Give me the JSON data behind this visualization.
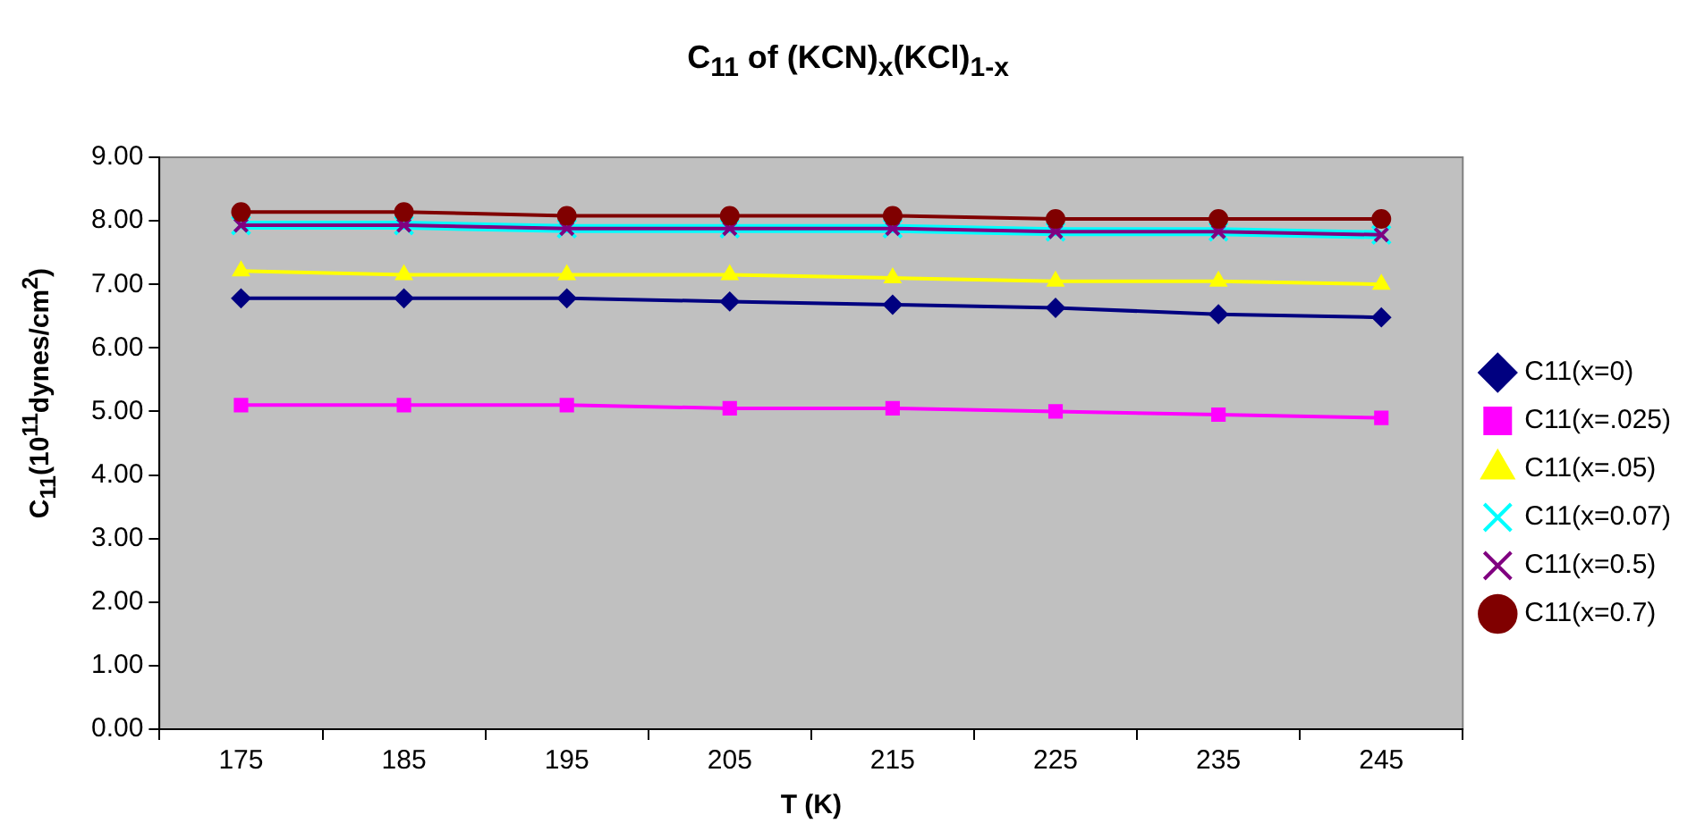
{
  "chart_data": {
    "type": "line",
    "title": "C$_{11}$ of (KCN)$_{x}$(KCl)$_{1-x}$",
    "xlabel": "T (K)",
    "ylabel": "C$_{11}$(10$^{11}$dynes/cm$^{2}$)",
    "categories": [
      "175",
      "185",
      "195",
      "205",
      "215",
      "225",
      "235",
      "245"
    ],
    "series": [
      {
        "name": "C11(x=0)",
        "color": "#000080",
        "marker": "diamond",
        "values": [
          6.78,
          6.78,
          6.78,
          6.73,
          6.68,
          6.63,
          6.53,
          6.48
        ]
      },
      {
        "name": "C11(x=.025)",
        "color": "#ff00ff",
        "marker": "square",
        "values": [
          5.1,
          5.1,
          5.1,
          5.05,
          5.05,
          5.0,
          4.95,
          4.9
        ]
      },
      {
        "name": "C11(x=.05)",
        "color": "#ffff00",
        "marker": "triangle",
        "values": [
          7.21,
          7.15,
          7.15,
          7.15,
          7.1,
          7.05,
          7.05,
          7.0
        ]
      },
      {
        "name": "C11(x=0.07)",
        "color": "#00ffff",
        "marker": "cross",
        "values": [
          7.93,
          7.93,
          7.88,
          7.88,
          7.88,
          7.83,
          7.83,
          7.78
        ]
      },
      {
        "name": "C11(x=0.5)",
        "color": "#800080",
        "marker": "cross",
        "values": [
          7.93,
          7.93,
          7.88,
          7.88,
          7.88,
          7.83,
          7.83,
          7.78
        ]
      },
      {
        "name": "C11(x=0.7)",
        "color": "#800000",
        "marker": "circle",
        "values": [
          8.14,
          8.14,
          8.08,
          8.08,
          8.08,
          8.03,
          8.03,
          8.03
        ]
      }
    ],
    "ylim": [
      0,
      9
    ],
    "yticks": [
      {
        "value": 0,
        "label": "0.00"
      },
      {
        "value": 1,
        "label": "1.00"
      },
      {
        "value": 2,
        "label": "2.00"
      },
      {
        "value": 3,
        "label": "3.00"
      },
      {
        "value": 4,
        "label": "4.00"
      },
      {
        "value": 5,
        "label": "5.00"
      },
      {
        "value": 6,
        "label": "6.00"
      },
      {
        "value": 7,
        "label": "7.00"
      },
      {
        "value": 8,
        "label": "8.00"
      },
      {
        "value": 9,
        "label": "9.00"
      }
    ],
    "grid": false,
    "legend": "right",
    "line_style": "solid"
  }
}
